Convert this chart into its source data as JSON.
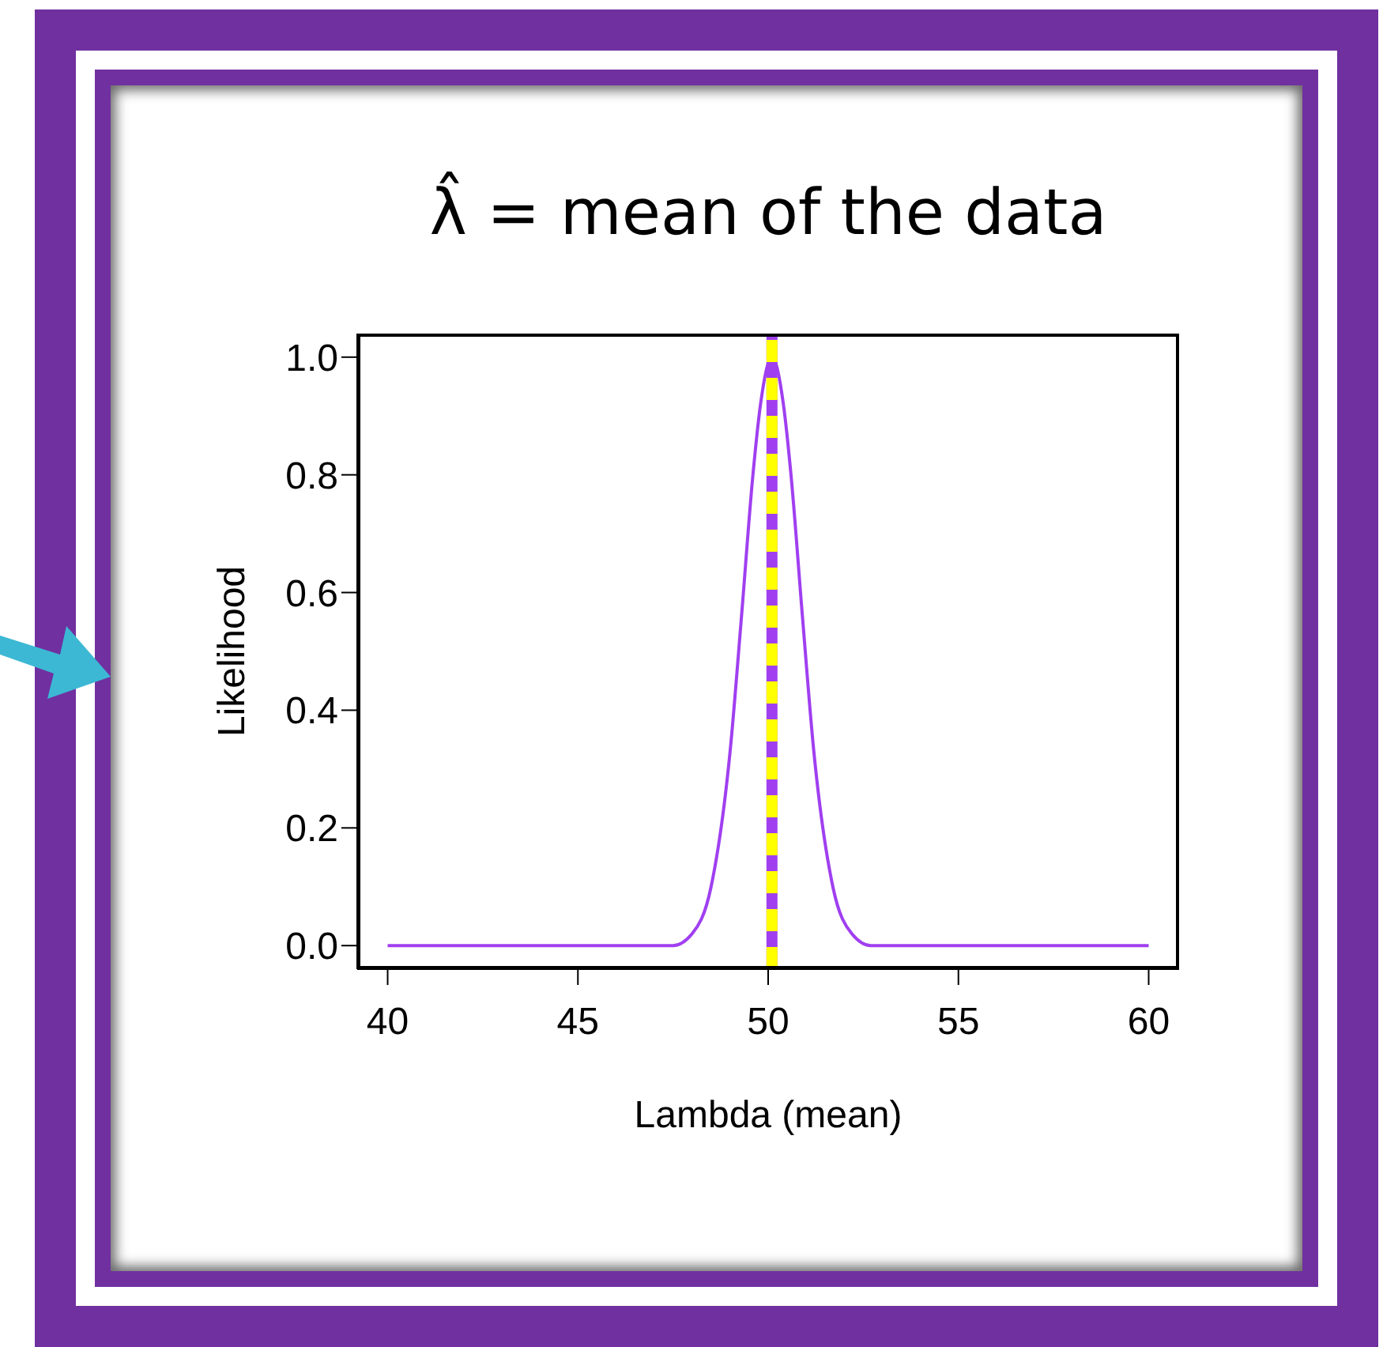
{
  "chart_data": {
    "type": "line",
    "title": "λ̂ = mean of the data",
    "xlabel": "Lambda (mean)",
    "ylabel": "Likelihood",
    "x": [
      40,
      45,
      47,
      47.5,
      48,
      48.5,
      49,
      49.3,
      49.6,
      49.8,
      50.1,
      50.4,
      50.6,
      50.9,
      51.2,
      51.7,
      52.2,
      52.7,
      53,
      55,
      60
    ],
    "series": [
      {
        "color": "#a03ff0",
        "values": [
          0,
          0,
          0,
          0,
          0.02,
          0.1,
          0.33,
          0.56,
          0.8,
          0.92,
          1,
          0.92,
          0.8,
          0.56,
          0.33,
          0.1,
          0.02,
          0,
          0,
          0,
          0
        ]
      }
    ],
    "xlim": [
      39.2,
      60.8
    ],
    "ylim": [
      -0.04,
      1.04
    ],
    "xticks": [
      40,
      45,
      50,
      55,
      60
    ],
    "yticks": [
      {
        "value": 0,
        "label": "0.0"
      },
      0.2,
      0.4,
      0.6,
      0.8,
      {
        "value": 1,
        "label": "1.0"
      }
    ],
    "ref_lines": [
      {
        "axis": "x",
        "value": 50.1,
        "color": "#a03ff0",
        "line_style": "solid"
      },
      {
        "axis": "x",
        "value": 50.1,
        "color": "#ffff00",
        "line_style": "dashed"
      }
    ],
    "marker": "none",
    "line_style": "solid"
  }
}
